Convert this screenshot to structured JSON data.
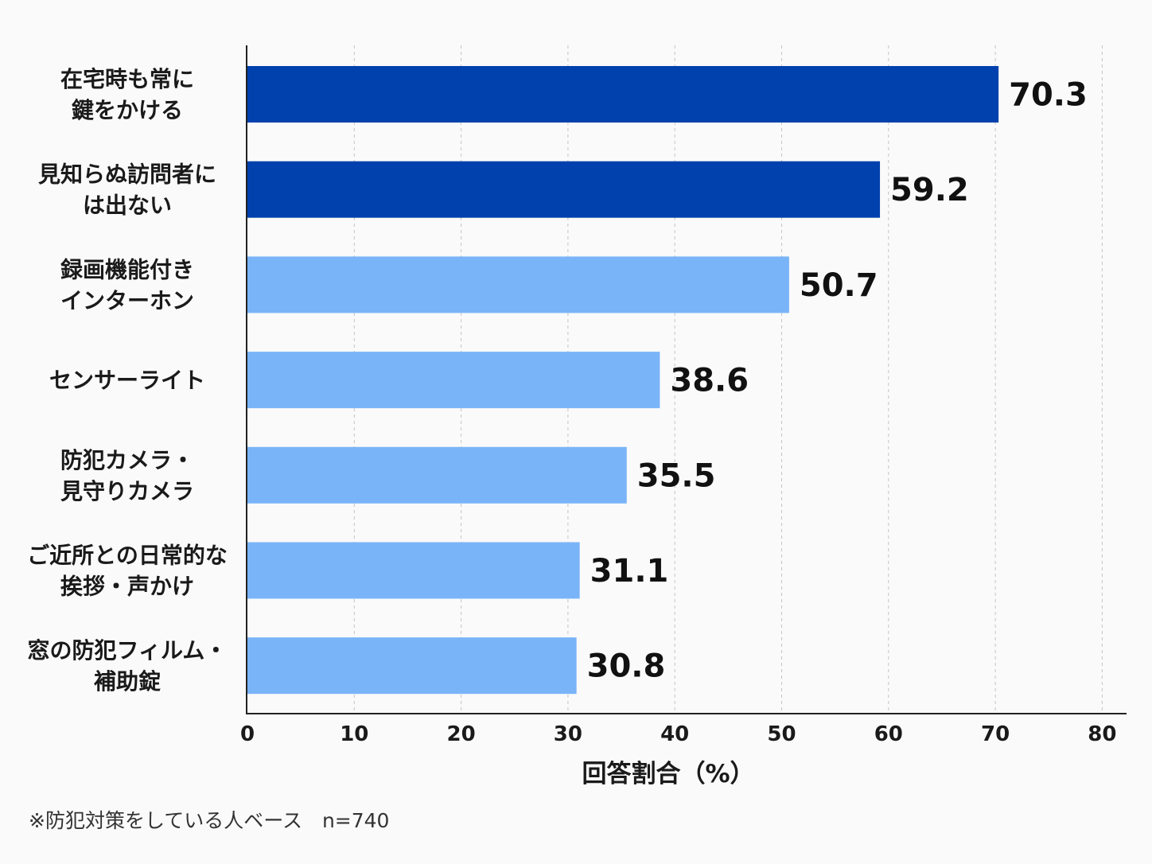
{
  "chart_data": {
    "type": "bar",
    "orientation": "horizontal",
    "categories": [
      [
        "在宅時も常に",
        "鍵をかける"
      ],
      [
        "見知らぬ訪問者に",
        "は出ない"
      ],
      [
        "録画機能付き",
        "インターホン"
      ],
      [
        "センサーライト"
      ],
      [
        "防犯カメラ・",
        "見守りカメラ"
      ],
      [
        "ご近所との日常的な",
        "挨拶・声かけ"
      ],
      [
        "窓の防犯フィルム・",
        "補助錠"
      ]
    ],
    "values": [
      70.3,
      59.2,
      50.7,
      38.6,
      35.5,
      31.1,
      30.8
    ],
    "value_labels": [
      "70.3",
      "59.2",
      "50.7",
      "38.6",
      "35.5",
      "31.1",
      "30.8"
    ],
    "bar_colors": [
      "#0041ad",
      "#0041ad",
      "#7ab4f8",
      "#7ab4f8",
      "#7ab4f8",
      "#7ab4f8",
      "#7ab4f8"
    ],
    "xlabel": "回答割合（%）",
    "xlim": [
      0,
      80
    ],
    "xticks": [
      0,
      10,
      20,
      30,
      40,
      50,
      60,
      70,
      80
    ],
    "grid": "vertical dashed",
    "title": "",
    "ylabel": ""
  },
  "footnote": "※防犯対策をしている人ベース　n=740"
}
